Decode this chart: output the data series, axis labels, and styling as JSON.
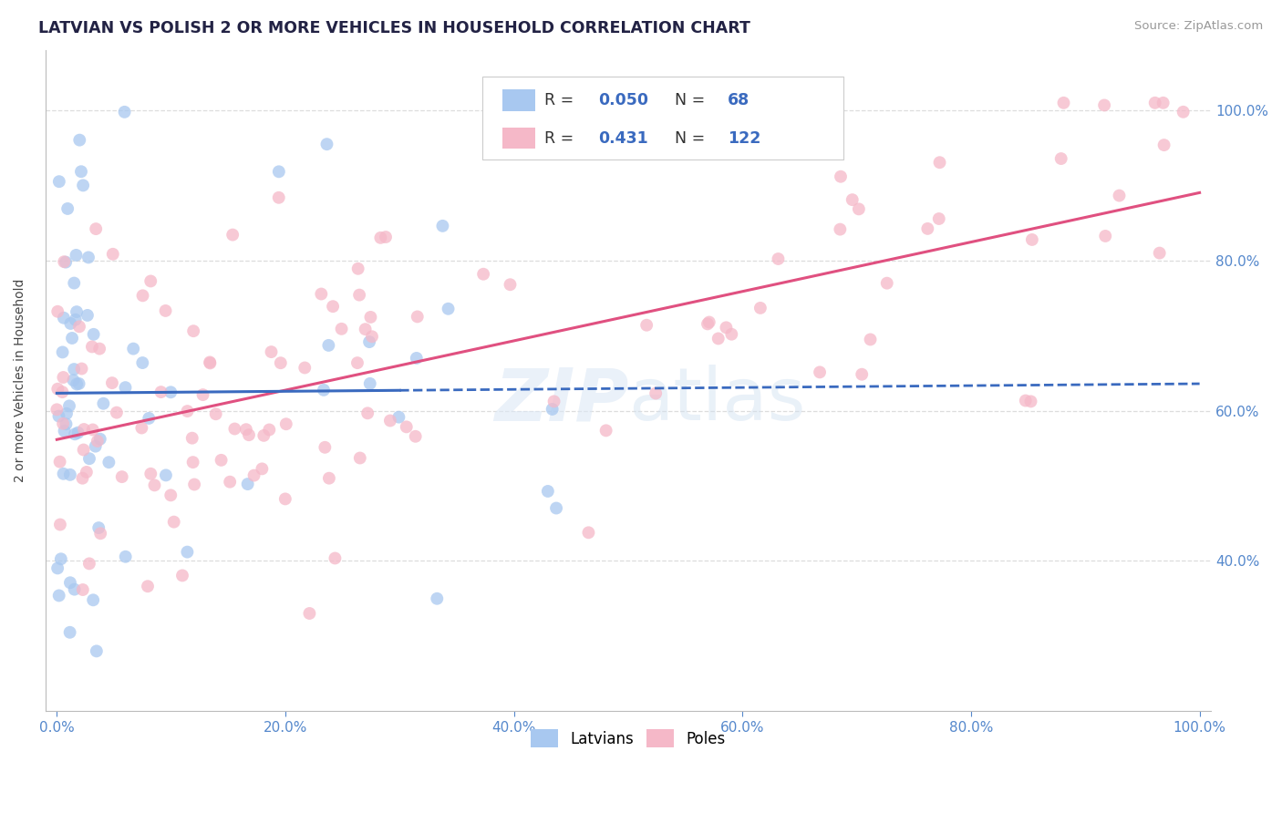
{
  "title": "LATVIAN VS POLISH 2 OR MORE VEHICLES IN HOUSEHOLD CORRELATION CHART",
  "source_text": "Source: ZipAtlas.com",
  "ylabel": "2 or more Vehicles in Household",
  "latvian_color": "#a8c8f0",
  "polish_color": "#f5b8c8",
  "latvian_line_color": "#3a6abf",
  "polish_line_color": "#e05080",
  "latvian_R": 0.05,
  "latvian_N": 68,
  "polish_R": 0.431,
  "polish_N": 122,
  "legend_latvians": "Latvians",
  "legend_poles": "Poles",
  "watermark_zip": "ZIP",
  "watermark_atlas": "atlas",
  "title_color": "#222244",
  "source_color": "#999999",
  "tick_color": "#5588cc",
  "ylabel_color": "#444444"
}
